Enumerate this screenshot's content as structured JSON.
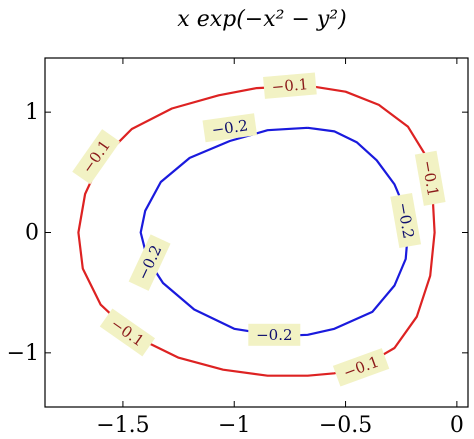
{
  "chart_data": {
    "type": "line",
    "subtype": "contour",
    "title": "x exp(−x² − y²)",
    "xlabel": "",
    "ylabel": "",
    "xlim": [
      -1.85,
      0.05
    ],
    "ylim": [
      -1.45,
      1.45
    ],
    "x_ticks": [
      {
        "value": -1.5,
        "label": "−1.5"
      },
      {
        "value": -1.0,
        "label": "−1"
      },
      {
        "value": -0.5,
        "label": "−0.5"
      },
      {
        "value": 0.0,
        "label": "0"
      }
    ],
    "y_ticks": [
      {
        "value": 1.0,
        "label": "1"
      },
      {
        "value": 0.0,
        "label": "0"
      },
      {
        "value": -1.0,
        "label": "−1"
      }
    ],
    "grid": false,
    "series": [
      {
        "level": -0.1,
        "color": "#dd2222",
        "label_text": "−0.1",
        "label_color": "#8b1a1a",
        "points": [
          [
            -0.67,
            1.22
          ],
          [
            -0.5,
            1.17
          ],
          [
            -0.35,
            1.06
          ],
          [
            -0.22,
            0.88
          ],
          [
            -0.14,
            0.64
          ],
          [
            -0.11,
            0.34
          ],
          [
            -0.1,
            0.0
          ],
          [
            -0.12,
            -0.36
          ],
          [
            -0.18,
            -0.7
          ],
          [
            -0.28,
            -0.96
          ],
          [
            -0.42,
            -1.11
          ],
          [
            -0.55,
            -1.17
          ],
          [
            -0.67,
            -1.19
          ],
          [
            -0.85,
            -1.19
          ],
          [
            -1.05,
            -1.14
          ],
          [
            -1.25,
            -1.04
          ],
          [
            -1.45,
            -0.86
          ],
          [
            -1.6,
            -0.6
          ],
          [
            -1.68,
            -0.3
          ],
          [
            -1.7,
            0.0
          ],
          [
            -1.67,
            0.32
          ],
          [
            -1.6,
            0.6
          ],
          [
            -1.46,
            0.86
          ],
          [
            -1.28,
            1.03
          ],
          [
            -1.07,
            1.14
          ],
          [
            -0.9,
            1.2
          ],
          [
            -0.67,
            1.22
          ]
        ],
        "labels": [
          {
            "x": -0.75,
            "y": 1.22,
            "angle": -5
          },
          {
            "x": -1.62,
            "y": 0.63,
            "angle": -55
          },
          {
            "x": -0.12,
            "y": 0.45,
            "angle": 80
          },
          {
            "x": -1.48,
            "y": -0.83,
            "angle": 35
          },
          {
            "x": -0.43,
            "y": -1.12,
            "angle": -20
          }
        ]
      },
      {
        "level": -0.2,
        "color": "#1a1add",
        "label_text": "−0.2",
        "label_color": "#10106e",
        "points": [
          [
            -0.67,
            0.87
          ],
          [
            -0.55,
            0.84
          ],
          [
            -0.45,
            0.75
          ],
          [
            -0.36,
            0.6
          ],
          [
            -0.28,
            0.4
          ],
          [
            -0.23,
            0.18
          ],
          [
            -0.22,
            0.0
          ],
          [
            -0.23,
            -0.22
          ],
          [
            -0.28,
            -0.44
          ],
          [
            -0.38,
            -0.66
          ],
          [
            -0.55,
            -0.8
          ],
          [
            -0.67,
            -0.85
          ],
          [
            -0.8,
            -0.86
          ],
          [
            -1.0,
            -0.8
          ],
          [
            -1.18,
            -0.64
          ],
          [
            -1.32,
            -0.42
          ],
          [
            -1.39,
            -0.22
          ],
          [
            -1.42,
            0.0
          ],
          [
            -1.4,
            0.18
          ],
          [
            -1.33,
            0.42
          ],
          [
            -1.2,
            0.62
          ],
          [
            -1.02,
            0.76
          ],
          [
            -0.85,
            0.85
          ],
          [
            -0.67,
            0.87
          ]
        ],
        "labels": [
          {
            "x": -1.02,
            "y": 0.87,
            "angle": -8
          },
          {
            "x": -0.23,
            "y": 0.1,
            "angle": 80
          },
          {
            "x": -1.38,
            "y": -0.25,
            "angle": -65
          },
          {
            "x": -0.82,
            "y": -0.85,
            "angle": 0
          }
        ]
      }
    ]
  }
}
